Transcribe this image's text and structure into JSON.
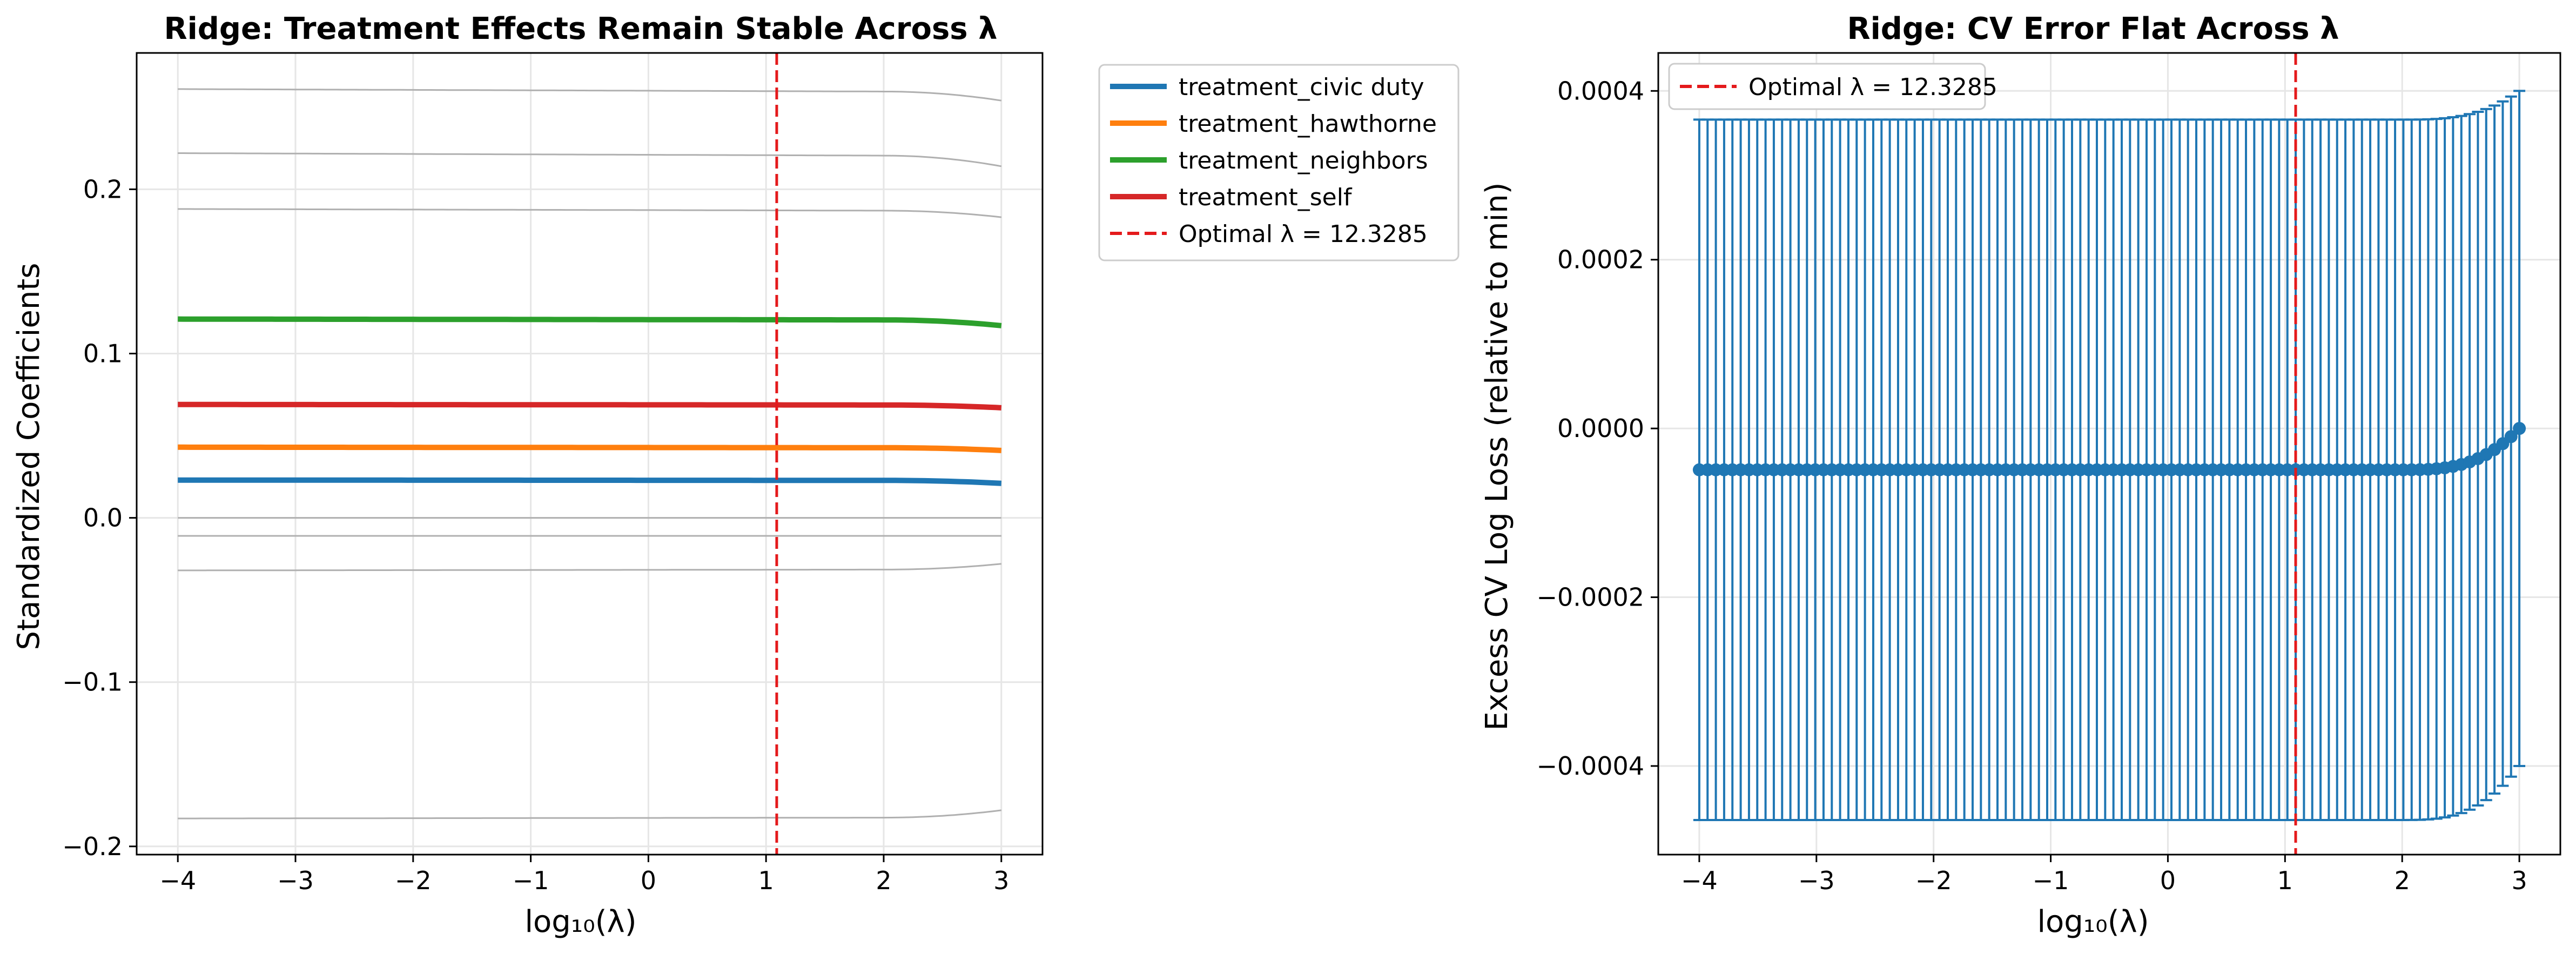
{
  "chart_data": [
    {
      "type": "line",
      "title": "Ridge: Treatment Effects Remain Stable Across λ",
      "xlabel": "log₁₀(λ)",
      "ylabel": "Standardized Coefficients",
      "xlim": [
        -4.35,
        3.35
      ],
      "ylim": [
        -0.205,
        0.283
      ],
      "xticks": [
        -4,
        -3,
        -2,
        -1,
        0,
        1,
        2,
        3
      ],
      "xtick_labels": [
        "−4",
        "−3",
        "−2",
        "−1",
        "0",
        "1",
        "2",
        "3"
      ],
      "yticks": [
        -0.2,
        -0.1,
        0.0,
        0.1,
        0.2
      ],
      "ytick_labels": [
        "−0.2",
        "−0.1",
        "0.0",
        "0.1",
        "0.2"
      ],
      "grid": true,
      "legend_position": "outside-right",
      "x_range": [
        -4,
        3
      ],
      "series": [
        {
          "name": "treatment_civic duty",
          "color": "#1f77b4",
          "values_at_x": {
            "-4": 0.023,
            "2": 0.0228,
            "3": 0.021
          }
        },
        {
          "name": "treatment_hawthorne",
          "color": "#ff7f0e",
          "values_at_x": {
            "-4": 0.043,
            "2": 0.0427,
            "3": 0.041
          }
        },
        {
          "name": "treatment_neighbors",
          "color": "#2ca02c",
          "values_at_x": {
            "-4": 0.121,
            "2": 0.1205,
            "3": 0.117
          }
        },
        {
          "name": "treatment_self",
          "color": "#d62728",
          "values_at_x": {
            "-4": 0.069,
            "2": 0.0687,
            "3": 0.067
          }
        }
      ],
      "background_series": [
        {
          "color": "#b0b0b0",
          "values_at_x": {
            "-4": 0.261,
            "2": 0.2595,
            "3": 0.254
          }
        },
        {
          "color": "#b0b0b0",
          "values_at_x": {
            "-4": 0.222,
            "2": 0.2205,
            "3": 0.214
          }
        },
        {
          "color": "#b0b0b0",
          "values_at_x": {
            "-4": 0.188,
            "2": 0.187,
            "3": 0.183
          }
        },
        {
          "color": "#b0b0b0",
          "values_at_x": {
            "-4": 0.0,
            "2": 0.0,
            "3": 0.0
          }
        },
        {
          "color": "#b0b0b0",
          "values_at_x": {
            "-4": -0.011,
            "2": -0.011,
            "3": -0.011
          }
        },
        {
          "color": "#b0b0b0",
          "values_at_x": {
            "-4": -0.032,
            "2": -0.0315,
            "3": -0.028
          }
        },
        {
          "color": "#b0b0b0",
          "values_at_x": {
            "-4": -0.183,
            "2": -0.1825,
            "3": -0.178
          }
        }
      ],
      "vline": {
        "x": 1.0907,
        "label": "Optimal λ = 12.3285",
        "color": "#e41a1c"
      }
    },
    {
      "type": "scatter",
      "title": "Ridge: CV Error Flat Across λ",
      "xlabel": "log₁₀(λ)",
      "ylabel": "Excess CV Log Loss (relative to min)",
      "xlim": [
        -4.35,
        3.35
      ],
      "ylim": [
        -0.000505,
        0.000445
      ],
      "xticks": [
        -4,
        -3,
        -2,
        -1,
        0,
        1,
        2,
        3
      ],
      "xtick_labels": [
        "−4",
        "−3",
        "−2",
        "−1",
        "0",
        "1",
        "2",
        "3"
      ],
      "yticks": [
        -0.0004,
        -0.0002,
        0.0,
        0.0002,
        0.0004
      ],
      "ytick_labels": [
        "−0.0004",
        "−0.0002",
        "0.0000",
        "0.0002",
        "0.0004"
      ],
      "grid": true,
      "legend_position": "top-left",
      "color": "#1f77b4",
      "num_points": 100,
      "x_range": [
        -4,
        3
      ],
      "mean_flat": -4.9e-05,
      "mean_end": 0.0,
      "error_flat": 0.000415,
      "error_end": 0.0004,
      "vline": {
        "x": 1.0907,
        "label": "Optimal λ = 12.3285",
        "color": "#e41a1c"
      }
    }
  ]
}
